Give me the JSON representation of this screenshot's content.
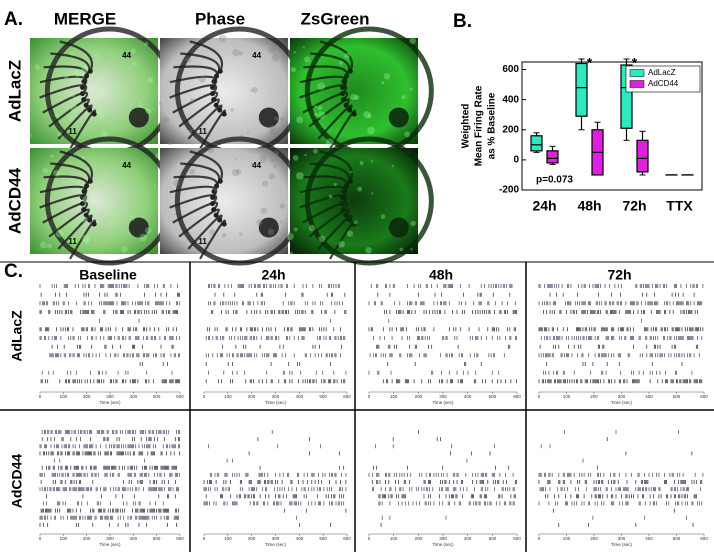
{
  "panel_a": {
    "label": "A.",
    "columns": [
      "MERGE",
      "Phase",
      "ZsGreen"
    ],
    "rows": [
      "AdLacZ",
      "AdCD44"
    ],
    "electrode_labels": [
      "44",
      "11"
    ]
  },
  "chart_data": {
    "type": "box",
    "label": "B.",
    "ylabel": [
      "Weighted",
      "Mean Firing Rate",
      "as % Baseline"
    ],
    "categories": [
      "24h",
      "48h",
      "72h",
      "TTX"
    ],
    "series": [
      {
        "name": "AdLacZ",
        "color": "#2ee8c0",
        "stats": [
          {
            "min": 50,
            "q1": 60,
            "median": 100,
            "q3": 160,
            "max": 180
          },
          {
            "min": 200,
            "q1": 290,
            "median": 480,
            "q3": 640,
            "max": 670
          },
          {
            "min": 130,
            "q1": 210,
            "median": 480,
            "q3": 630,
            "max": 670
          },
          {
            "min": -100,
            "q1": -100,
            "median": -100,
            "q3": -100,
            "max": -100
          }
        ]
      },
      {
        "name": "AdCD44",
        "color": "#e020e0",
        "stats": [
          {
            "min": -30,
            "q1": -20,
            "median": 10,
            "q3": 60,
            "max": 90
          },
          {
            "min": -100,
            "q1": -100,
            "median": 50,
            "q3": 200,
            "max": 250
          },
          {
            "min": -100,
            "q1": -80,
            "median": 10,
            "q3": 130,
            "max": 190
          },
          {
            "min": -100,
            "q1": -100,
            "median": -100,
            "q3": -100,
            "max": -100
          }
        ]
      }
    ],
    "ylim": [
      -200,
      650
    ],
    "yticks": [
      -200,
      0,
      200,
      400,
      600
    ],
    "legend": "upper right",
    "annotations": [
      "*",
      "*",
      "p=0.073"
    ]
  },
  "panel_c": {
    "label": "C.",
    "columns": [
      "Baseline",
      "24h",
      "48h",
      "72h"
    ],
    "rows": [
      "AdLacZ",
      "AdCD44"
    ],
    "raster_xticks": [
      0,
      100,
      200,
      300,
      400,
      500,
      600
    ],
    "raster_xlabel": "Time (sec)"
  }
}
